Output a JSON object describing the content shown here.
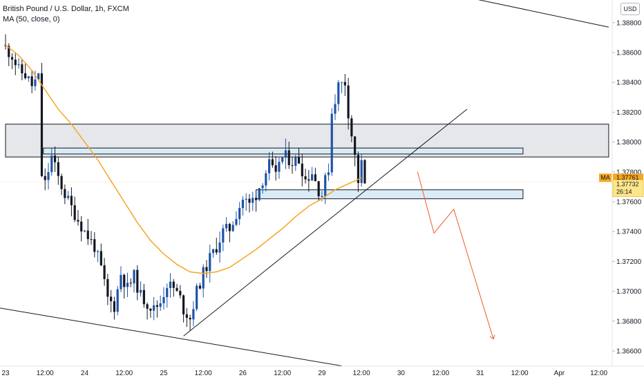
{
  "legend": {
    "symbol": "British Pound / U.S. Dollar, 1h, FXCM",
    "indicator": "MA (50, close, 0)"
  },
  "currency_button": "USD",
  "price_tags": {
    "ma_label": "MA",
    "ma_value": "1.37761",
    "price_value": "1.37732",
    "countdown": "26:14"
  },
  "colors": {
    "bull": "#1e53a8",
    "bear": "#131722",
    "ma": "#f5a623",
    "projection": "#f05a24",
    "zone_outer": "#e3e4e8",
    "zone_inner": "#d6ebf5"
  },
  "chart_data": {
    "type": "candlestick",
    "title": "British Pound / U.S. Dollar, 1h, FXCM",
    "ylim": [
      1.3655,
      1.3895
    ],
    "y_ticks": [
      1.366,
      1.368,
      1.37,
      1.372,
      1.374,
      1.376,
      1.378,
      1.38,
      1.382,
      1.384,
      1.386,
      1.388
    ],
    "y_tick_labels": [
      "1.36600",
      "1.36800",
      "1.37000",
      "1.37200",
      "1.37400",
      "1.37600",
      "1.37800",
      "1.38000",
      "1.38200",
      "1.38400",
      "1.38600",
      "1.38800"
    ],
    "x_ticks": [
      {
        "label": "23",
        "t": 0
      },
      {
        "label": "12:00",
        "t": 12
      },
      {
        "label": "24",
        "t": 24
      },
      {
        "label": "12:00",
        "t": 36
      },
      {
        "label": "25",
        "t": 48
      },
      {
        "label": "12:00",
        "t": 60
      },
      {
        "label": "26",
        "t": 72
      },
      {
        "label": "12:00",
        "t": 84
      },
      {
        "label": "29",
        "t": 96
      },
      {
        "label": "12:00",
        "t": 108
      },
      {
        "label": "30",
        "t": 120
      },
      {
        "label": "12:00",
        "t": 132
      },
      {
        "label": "31",
        "t": 144
      },
      {
        "label": "12:00",
        "t": 156
      },
      {
        "label": "Apr",
        "t": 168
      },
      {
        "label": "12:00",
        "t": 180
      }
    ],
    "close_anchors": [
      [
        0,
        1.3863
      ],
      [
        2,
        1.3858
      ],
      [
        4,
        1.3848
      ],
      [
        6,
        1.3845
      ],
      [
        8,
        1.3838
      ],
      [
        10,
        1.3843
      ],
      [
        11,
        1.3778
      ],
      [
        12,
        1.3772
      ],
      [
        14,
        1.379
      ],
      [
        16,
        1.3776
      ],
      [
        18,
        1.3765
      ],
      [
        20,
        1.3756
      ],
      [
        22,
        1.3748
      ],
      [
        24,
        1.374
      ],
      [
        27,
        1.373
      ],
      [
        29,
        1.3715
      ],
      [
        31,
        1.3695
      ],
      [
        33,
        1.369
      ],
      [
        35,
        1.3712
      ],
      [
        37,
        1.3702
      ],
      [
        39,
        1.371
      ],
      [
        41,
        1.3697
      ],
      [
        43,
        1.3692
      ],
      [
        45,
        1.3688
      ],
      [
        47,
        1.3693
      ],
      [
        49,
        1.3705
      ],
      [
        51,
        1.3702
      ],
      [
        53,
        1.3695
      ],
      [
        54,
        1.3688
      ],
      [
        56,
        1.3682
      ],
      [
        58,
        1.37
      ],
      [
        60,
        1.3712
      ],
      [
        62,
        1.3722
      ],
      [
        64,
        1.373
      ],
      [
        66,
        1.374
      ],
      [
        68,
        1.3742
      ],
      [
        70,
        1.3752
      ],
      [
        72,
        1.3762
      ],
      [
        74,
        1.3758
      ],
      [
        76,
        1.3765
      ],
      [
        78,
        1.3775
      ],
      [
        80,
        1.3785
      ],
      [
        82,
        1.3776
      ],
      [
        83,
        1.3788
      ],
      [
        85,
        1.379
      ],
      [
        87,
        1.3787
      ],
      [
        89,
        1.3788
      ],
      [
        91,
        1.3775
      ],
      [
        93,
        1.378
      ],
      [
        95,
        1.3768
      ],
      [
        96,
        1.3765
      ],
      [
        98,
        1.3783
      ],
      [
        99,
        1.382
      ],
      [
        101,
        1.3838
      ],
      [
        103,
        1.384
      ],
      [
        104,
        1.382
      ],
      [
        106,
        1.379
      ],
      [
        107,
        1.3774
      ],
      [
        108,
        1.3785
      ],
      [
        109,
        1.3772
      ]
    ],
    "ma_50": [
      [
        0,
        1.3865
      ],
      [
        4,
        1.3858
      ],
      [
        8,
        1.3848
      ],
      [
        12,
        1.3835
      ],
      [
        16,
        1.3822
      ],
      [
        20,
        1.3812
      ],
      [
        24,
        1.38
      ],
      [
        28,
        1.3788
      ],
      [
        32,
        1.3774
      ],
      [
        36,
        1.376
      ],
      [
        40,
        1.3746
      ],
      [
        44,
        1.3734
      ],
      [
        48,
        1.3725
      ],
      [
        52,
        1.3718
      ],
      [
        56,
        1.3713
      ],
      [
        60,
        1.3712
      ],
      [
        64,
        1.3713
      ],
      [
        68,
        1.3716
      ],
      [
        72,
        1.3722
      ],
      [
        76,
        1.3728
      ],
      [
        80,
        1.3735
      ],
      [
        84,
        1.3742
      ],
      [
        88,
        1.375
      ],
      [
        92,
        1.3757
      ],
      [
        96,
        1.3762
      ],
      [
        100,
        1.3768
      ],
      [
        104,
        1.3772
      ],
      [
        108,
        1.3776
      ]
    ],
    "zones": [
      {
        "name": "resistance-zone",
        "y_top": 1.3812,
        "y_bottom": 1.379,
        "t_start": 0,
        "t_end": 183
      },
      {
        "name": "resistance-box",
        "y_top": 1.3796,
        "y_bottom": 1.3792,
        "t_start": 11.5,
        "t_end": 157
      },
      {
        "name": "support-box",
        "y_top": 1.3768,
        "y_bottom": 1.3762,
        "t_start": 76,
        "t_end": 157
      }
    ],
    "trend_lines": [
      {
        "name": "upper-channel-line",
        "points": [
          [
            140,
            1.3897
          ],
          [
            183,
            1.3877
          ]
        ]
      },
      {
        "name": "lower-channel-line",
        "points": [
          [
            -5,
            1.369
          ],
          [
            102,
            1.365
          ]
        ]
      },
      {
        "name": "rising-trendline",
        "points": [
          [
            54,
            1.367
          ],
          [
            140,
            1.3822
          ]
        ]
      }
    ],
    "projection": [
      [
        125,
        1.378
      ],
      [
        130,
        1.3739
      ],
      [
        136,
        1.3755
      ],
      [
        148,
        1.3668
      ]
    ],
    "last_price": 1.37732,
    "ma_last": 1.37761
  }
}
